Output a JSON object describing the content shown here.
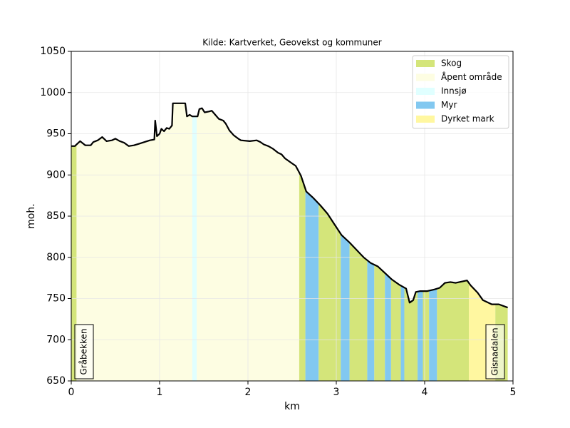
{
  "chart_data": {
    "type": "area",
    "title": "Kilde: Kartverket, Geovekst og kommuner",
    "xlabel": "km",
    "ylabel": "moh.",
    "xlim": [
      0,
      5
    ],
    "ylim": [
      650,
      1050
    ],
    "xticks": [
      0,
      1,
      2,
      3,
      4,
      5
    ],
    "yticks": [
      650,
      700,
      750,
      800,
      850,
      900,
      950,
      1000,
      1050
    ],
    "grid": true,
    "legend": "upper right",
    "line_color": "#000000",
    "x": [
      0,
      0.04,
      0.1,
      0.16,
      0.22,
      0.25,
      0.3,
      0.35,
      0.4,
      0.46,
      0.5,
      0.55,
      0.6,
      0.65,
      0.71,
      0.77,
      0.83,
      0.89,
      0.94,
      0.95,
      0.97,
      1.0,
      1.02,
      1.05,
      1.08,
      1.11,
      1.14,
      1.15,
      1.29,
      1.31,
      1.34,
      1.37,
      1.43,
      1.45,
      1.48,
      1.51,
      1.56,
      1.59,
      1.63,
      1.67,
      1.72,
      1.75,
      1.79,
      1.84,
      1.89,
      1.92,
      2.02,
      2.1,
      2.14,
      2.18,
      2.23,
      2.28,
      2.34,
      2.38,
      2.42,
      2.5,
      2.54,
      2.6,
      2.66,
      2.74,
      2.82,
      2.9,
      2.98,
      3.06,
      3.15,
      3.23,
      3.31,
      3.39,
      3.47,
      3.55,
      3.63,
      3.71,
      3.79,
      3.83,
      3.87,
      3.9,
      3.95,
      4.03,
      4.11,
      4.17,
      4.23,
      4.29,
      4.35,
      4.44,
      4.48,
      4.52,
      4.6,
      4.66,
      4.76,
      4.84,
      4.94
    ],
    "elevation": [
      935,
      935,
      941,
      936,
      936,
      940,
      942,
      946,
      941,
      942,
      944,
      941,
      939,
      935,
      936,
      938,
      940,
      942,
      943,
      966,
      947,
      950,
      956,
      953,
      957,
      956,
      960,
      987,
      987,
      971,
      973,
      971,
      971,
      980,
      981,
      976,
      977,
      978,
      973,
      968,
      966,
      962,
      954,
      948,
      944,
      942,
      941,
      942,
      940,
      937,
      935,
      932,
      927,
      925,
      920,
      914,
      911,
      899,
      880,
      872,
      863,
      853,
      840,
      827,
      818,
      809,
      800,
      793,
      789,
      781,
      773,
      767,
      762,
      745,
      748,
      758,
      759,
      759,
      761,
      763,
      769,
      770,
      769,
      771,
      772,
      766,
      757,
      748,
      743,
      743,
      739
    ],
    "covers": [
      {
        "name": "Skog",
        "color": "#d4e57a"
      },
      {
        "name": "Åpent område",
        "color": "#fdfde2"
      },
      {
        "name": "Innsjø",
        "color": "#e0ffff"
      },
      {
        "name": "Myr",
        "color": "#82c8f0"
      },
      {
        "name": "Dyrket mark",
        "color": "#fff7a0"
      }
    ],
    "segments": {
      "starts": [
        0,
        0.06,
        1.37,
        1.42,
        2.58,
        2.65,
        2.8,
        3.05,
        3.15,
        3.35,
        3.43,
        3.55,
        3.62,
        3.73,
        3.77,
        3.92,
        3.98,
        4.05,
        4.14,
        4.5,
        4.8
      ],
      "ends": [
        0.06,
        1.37,
        1.42,
        2.58,
        2.65,
        2.8,
        3.05,
        3.15,
        3.35,
        3.43,
        3.55,
        3.62,
        3.73,
        3.77,
        3.92,
        3.98,
        4.05,
        4.14,
        4.5,
        4.8,
        4.94
      ],
      "cover": [
        0,
        1,
        2,
        1,
        0,
        3,
        0,
        3,
        0,
        3,
        0,
        3,
        0,
        3,
        0,
        3,
        0,
        3,
        0,
        4,
        0
      ]
    },
    "annotations": [
      "Gråbekken",
      "Gisnadalen"
    ]
  }
}
